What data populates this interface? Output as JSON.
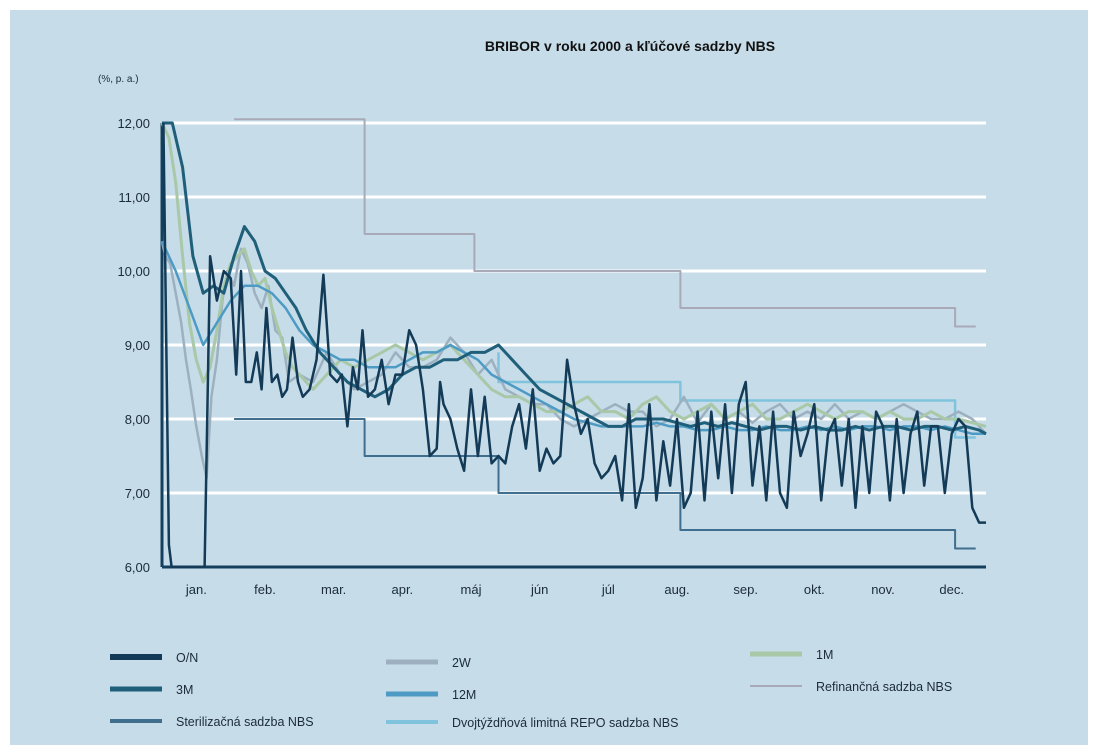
{
  "chart_data": {
    "type": "line",
    "title": "BRIBOR v roku 2000 a kľúčové sadzby NBS",
    "ylabel": "(%, p. a.)",
    "xlabel": "",
    "ylim": [
      6.0,
      12.0
    ],
    "ytick_labels": [
      "6,00",
      "7,00",
      "8,00",
      "9,00",
      "10,00",
      "11,00",
      "12,00"
    ],
    "categories": [
      "jan.",
      "feb.",
      "mar.",
      "apr.",
      "máj",
      "jún",
      "júl",
      "aug.",
      "sep.",
      "okt.",
      "nov.",
      "dec."
    ],
    "xlim": [
      0,
      12
    ],
    "grid": true,
    "legend_position": "bottom",
    "colors": {
      "background": "#c6dce8",
      "on": "#133a56",
      "w2": "#9db0c0",
      "m1": "#a8c8a8",
      "m3": "#1f5f7a",
      "m12": "#4d9bc4",
      "refin": "#a8aab8",
      "steril": "#3f6e8e",
      "repo": "#7fc3dc"
    },
    "series": [
      {
        "key": "on",
        "name": "O/N",
        "x": [
          0.02,
          0.06,
          0.1,
          0.14,
          0.2,
          0.27,
          0.35,
          0.45,
          0.55,
          0.62,
          0.7,
          0.8,
          0.9,
          1.0,
          1.08,
          1.15,
          1.22,
          1.3,
          1.38,
          1.45,
          1.52,
          1.6,
          1.68,
          1.75,
          1.82,
          1.9,
          1.98,
          2.05,
          2.15,
          2.25,
          2.35,
          2.45,
          2.55,
          2.62,
          2.7,
          2.78,
          2.85,
          2.92,
          3.0,
          3.1,
          3.2,
          3.3,
          3.4,
          3.5,
          3.6,
          3.7,
          3.8,
          3.9,
          4.0,
          4.05,
          4.1,
          4.2,
          4.3,
          4.4,
          4.5,
          4.6,
          4.7,
          4.8,
          4.9,
          5.0,
          5.1,
          5.2,
          5.3,
          5.4,
          5.5,
          5.6,
          5.7,
          5.8,
          5.9,
          6.0,
          6.1,
          6.2,
          6.3,
          6.4,
          6.5,
          6.6,
          6.7,
          6.8,
          6.9,
          7.0,
          7.1,
          7.2,
          7.3,
          7.4,
          7.5,
          7.6,
          7.7,
          7.8,
          7.9,
          8.0,
          8.1,
          8.2,
          8.3,
          8.4,
          8.5,
          8.6,
          8.7,
          8.8,
          8.9,
          9.0,
          9.1,
          9.2,
          9.3,
          9.4,
          9.5,
          9.6,
          9.7,
          9.8,
          9.9,
          10.0,
          10.1,
          10.2,
          10.3,
          10.4,
          10.5,
          10.6,
          10.7,
          10.8,
          10.9,
          11.0,
          11.1,
          11.2,
          11.3,
          11.4,
          11.5,
          11.6,
          11.7,
          11.8,
          11.85,
          11.9,
          12.0
        ],
        "values": [
          12.0,
          9.2,
          6.3,
          6.0,
          6.0,
          6.0,
          6.0,
          6.0,
          6.0,
          6.0,
          10.2,
          9.6,
          10.0,
          9.9,
          8.6,
          10.0,
          8.5,
          8.5,
          8.9,
          8.4,
          9.5,
          8.5,
          8.6,
          8.3,
          8.4,
          9.1,
          8.5,
          8.3,
          8.4,
          8.8,
          9.95,
          8.6,
          8.5,
          8.6,
          7.9,
          8.7,
          8.4,
          9.2,
          8.3,
          8.4,
          8.8,
          8.2,
          8.6,
          8.6,
          9.2,
          9.0,
          8.4,
          7.5,
          7.6,
          8.5,
          8.2,
          8.0,
          7.6,
          7.3,
          8.4,
          7.5,
          8.3,
          7.4,
          7.5,
          7.4,
          7.9,
          8.2,
          7.6,
          8.4,
          7.3,
          7.6,
          7.4,
          7.5,
          8.8,
          8.2,
          7.8,
          8.0,
          7.4,
          7.2,
          7.3,
          7.5,
          6.9,
          8.2,
          6.8,
          7.2,
          8.2,
          6.9,
          7.7,
          7.1,
          8.0,
          6.8,
          7.0,
          8.1,
          6.9,
          8.1,
          7.2,
          8.2,
          7.0,
          8.2,
          8.5,
          7.1,
          7.9,
          6.9,
          8.1,
          7.0,
          6.8,
          8.1,
          7.5,
          7.8,
          8.2,
          6.9,
          7.8,
          8.0,
          7.1,
          8.0,
          6.8,
          7.9,
          7.0,
          8.1,
          7.9,
          6.9,
          8.0,
          7.0,
          7.8,
          8.1,
          7.1,
          7.9,
          7.9,
          7.0,
          7.8,
          8.0,
          7.9,
          6.8,
          6.7,
          6.6,
          6.6
        ]
      },
      {
        "key": "w2",
        "name": "2W",
        "x": [
          0.0,
          0.05,
          0.12,
          0.2,
          0.28,
          0.35,
          0.42,
          0.5,
          0.58,
          0.65,
          0.72,
          0.8,
          0.88,
          0.95,
          1.05,
          1.15,
          1.25,
          1.35,
          1.45,
          1.55,
          1.65,
          1.75,
          1.85,
          2.0,
          2.2,
          2.4,
          2.6,
          2.8,
          3.0,
          3.2,
          3.4,
          3.6,
          3.8,
          4.0,
          4.2,
          4.4,
          4.6,
          4.8,
          5.0,
          5.2,
          5.4,
          5.6,
          5.8,
          6.0,
          6.2,
          6.4,
          6.6,
          6.8,
          7.0,
          7.2,
          7.4,
          7.6,
          7.8,
          8.0,
          8.2,
          8.4,
          8.6,
          8.8,
          9.0,
          9.2,
          9.4,
          9.6,
          9.8,
          10.0,
          10.2,
          10.4,
          10.6,
          10.8,
          11.0,
          11.2,
          11.4,
          11.6,
          11.8,
          12.0
        ],
        "values": [
          10.4,
          10.2,
          10.1,
          9.7,
          9.3,
          8.8,
          8.4,
          7.9,
          7.5,
          7.2,
          8.3,
          8.8,
          9.6,
          10.0,
          9.8,
          10.3,
          10.1,
          9.7,
          9.5,
          9.8,
          9.2,
          9.1,
          8.5,
          8.6,
          8.5,
          8.9,
          8.6,
          8.4,
          8.5,
          8.6,
          8.9,
          8.7,
          8.7,
          8.8,
          9.1,
          8.9,
          8.6,
          8.8,
          8.4,
          8.3,
          8.2,
          8.2,
          8.0,
          7.9,
          8.0,
          8.1,
          8.2,
          8.1,
          8.1,
          7.9,
          8.0,
          8.3,
          7.95,
          8.2,
          8.0,
          8.1,
          7.95,
          8.1,
          8.2,
          8.0,
          8.1,
          8.0,
          8.2,
          8.0,
          8.1,
          8.0,
          8.1,
          8.2,
          8.1,
          8.0,
          8.0,
          8.1,
          8.0,
          7.8
        ]
      },
      {
        "key": "m1",
        "name": "1M",
        "x": [
          0.0,
          0.1,
          0.2,
          0.3,
          0.4,
          0.5,
          0.6,
          0.7,
          0.8,
          0.9,
          1.0,
          1.1,
          1.2,
          1.3,
          1.4,
          1.5,
          1.6,
          1.7,
          1.8,
          1.9,
          2.0,
          2.2,
          2.4,
          2.6,
          2.8,
          3.0,
          3.2,
          3.4,
          3.6,
          3.8,
          4.0,
          4.2,
          4.4,
          4.6,
          4.8,
          5.0,
          5.2,
          5.4,
          5.6,
          5.8,
          6.0,
          6.2,
          6.4,
          6.6,
          6.8,
          7.0,
          7.2,
          7.4,
          7.6,
          7.8,
          8.0,
          8.2,
          8.4,
          8.6,
          8.8,
          9.0,
          9.2,
          9.4,
          9.6,
          9.8,
          10.0,
          10.2,
          10.4,
          10.6,
          10.8,
          11.0,
          11.2,
          11.4,
          11.6,
          11.8,
          12.0
        ],
        "values": [
          12.0,
          11.8,
          11.2,
          10.2,
          9.3,
          8.8,
          8.5,
          8.7,
          9.2,
          9.8,
          10.1,
          10.2,
          10.3,
          10.0,
          9.8,
          9.9,
          9.5,
          9.2,
          8.9,
          8.7,
          8.6,
          8.4,
          8.6,
          8.8,
          8.7,
          8.8,
          8.9,
          9.0,
          8.9,
          8.8,
          8.9,
          9.0,
          8.8,
          8.6,
          8.4,
          8.3,
          8.3,
          8.2,
          8.1,
          8.1,
          8.2,
          8.3,
          8.1,
          8.1,
          8.0,
          8.2,
          8.3,
          8.1,
          8.0,
          8.1,
          8.2,
          8.0,
          8.1,
          8.2,
          8.0,
          8.0,
          8.1,
          8.2,
          8.1,
          8.0,
          8.1,
          8.1,
          8.0,
          8.1,
          8.0,
          8.0,
          8.1,
          8.0,
          8.0,
          7.95,
          7.9
        ]
      },
      {
        "key": "m3",
        "name": "3M",
        "x": [
          0.0,
          0.15,
          0.3,
          0.45,
          0.6,
          0.75,
          0.9,
          1.05,
          1.2,
          1.35,
          1.5,
          1.65,
          1.8,
          1.95,
          2.1,
          2.3,
          2.5,
          2.7,
          2.9,
          3.1,
          3.3,
          3.5,
          3.7,
          3.9,
          4.1,
          4.3,
          4.5,
          4.7,
          4.9,
          5.1,
          5.3,
          5.5,
          5.7,
          5.9,
          6.1,
          6.3,
          6.5,
          6.7,
          6.9,
          7.1,
          7.3,
          7.5,
          7.7,
          7.9,
          8.1,
          8.3,
          8.5,
          8.7,
          8.9,
          9.1,
          9.3,
          9.5,
          9.7,
          9.9,
          10.1,
          10.3,
          10.5,
          10.7,
          10.9,
          11.1,
          11.3,
          11.5,
          11.7,
          11.9,
          12.0
        ],
        "values": [
          12.0,
          12.0,
          11.4,
          10.2,
          9.7,
          9.8,
          9.7,
          10.2,
          10.6,
          10.4,
          10.0,
          9.9,
          9.7,
          9.5,
          9.2,
          8.9,
          8.7,
          8.5,
          8.4,
          8.3,
          8.4,
          8.6,
          8.7,
          8.7,
          8.8,
          8.8,
          8.9,
          8.9,
          9.0,
          8.8,
          8.6,
          8.4,
          8.3,
          8.2,
          8.1,
          8.0,
          7.9,
          7.9,
          8.0,
          8.0,
          8.0,
          7.95,
          7.9,
          7.95,
          7.9,
          7.95,
          7.9,
          7.85,
          7.9,
          7.9,
          7.85,
          7.9,
          7.85,
          7.85,
          7.9,
          7.85,
          7.9,
          7.9,
          7.85,
          7.9,
          7.9,
          7.85,
          7.9,
          7.85,
          7.8
        ]
      },
      {
        "key": "m12",
        "name": "12M",
        "x": [
          0.0,
          0.2,
          0.4,
          0.6,
          0.8,
          1.0,
          1.2,
          1.4,
          1.6,
          1.8,
          2.0,
          2.2,
          2.4,
          2.6,
          2.8,
          3.0,
          3.2,
          3.4,
          3.6,
          3.8,
          4.0,
          4.2,
          4.4,
          4.6,
          4.8,
          5.0,
          5.2,
          5.4,
          5.6,
          5.8,
          6.0,
          6.2,
          6.4,
          6.6,
          6.8,
          7.0,
          7.2,
          7.4,
          7.6,
          7.8,
          8.0,
          8.2,
          8.4,
          8.6,
          8.8,
          9.0,
          9.2,
          9.4,
          9.6,
          9.8,
          10.0,
          10.2,
          10.4,
          10.6,
          10.8,
          11.0,
          11.2,
          11.4,
          11.6,
          11.8,
          12.0
        ],
        "values": [
          10.4,
          10.0,
          9.5,
          9.0,
          9.3,
          9.6,
          9.8,
          9.8,
          9.7,
          9.5,
          9.2,
          9.0,
          8.9,
          8.8,
          8.8,
          8.7,
          8.7,
          8.7,
          8.8,
          8.9,
          8.9,
          9.0,
          8.9,
          8.8,
          8.6,
          8.5,
          8.4,
          8.3,
          8.2,
          8.1,
          8.0,
          7.95,
          7.9,
          7.9,
          7.9,
          7.9,
          7.95,
          7.9,
          7.9,
          7.85,
          7.85,
          7.9,
          7.85,
          7.85,
          7.9,
          7.85,
          7.85,
          7.9,
          7.85,
          7.9,
          7.85,
          7.9,
          7.9,
          7.85,
          7.9,
          7.9,
          7.85,
          7.9,
          7.85,
          7.8,
          7.8
        ]
      },
      {
        "key": "refin",
        "name": "Refinančná sadzba NBS",
        "step": true,
        "x": [
          1.05,
          2.95,
          2.95,
          4.55,
          4.55,
          7.55,
          7.55,
          11.55,
          11.55,
          11.85
        ],
        "values": [
          12.05,
          12.05,
          10.5,
          10.5,
          10.0,
          10.0,
          9.5,
          9.5,
          9.25,
          9.25
        ]
      },
      {
        "key": "steril",
        "name": "Sterilizačná sadzba NBS",
        "step": true,
        "x": [
          1.05,
          2.95,
          2.95,
          4.9,
          4.9,
          7.55,
          7.55,
          11.55,
          11.55,
          11.85
        ],
        "values": [
          8.0,
          8.0,
          7.5,
          7.5,
          7.0,
          7.0,
          6.5,
          6.5,
          6.25,
          6.25
        ]
      },
      {
        "key": "repo",
        "name": "Dvojtýždňová limitná REPO sadzba NBS",
        "step": true,
        "x": [
          4.9,
          4.9,
          7.55,
          7.55,
          11.55,
          11.55,
          11.85
        ],
        "values": [
          8.9,
          8.5,
          8.5,
          8.25,
          8.25,
          7.75,
          7.75
        ]
      }
    ]
  },
  "legend": [
    {
      "key": "on",
      "label": "O/N"
    },
    {
      "key": "w2",
      "label": "2W"
    },
    {
      "key": "m1",
      "label": "1M"
    },
    {
      "key": "m3",
      "label": "3M"
    },
    {
      "key": "m12",
      "label": "12M"
    },
    {
      "key": "refin",
      "label": "Refinančná sadzba NBS"
    },
    {
      "key": "steril",
      "label": "Sterilizačná sadzba NBS"
    },
    {
      "key": "repo",
      "label": "Dvojtýždňová limitná REPO sadzba NBS"
    }
  ]
}
